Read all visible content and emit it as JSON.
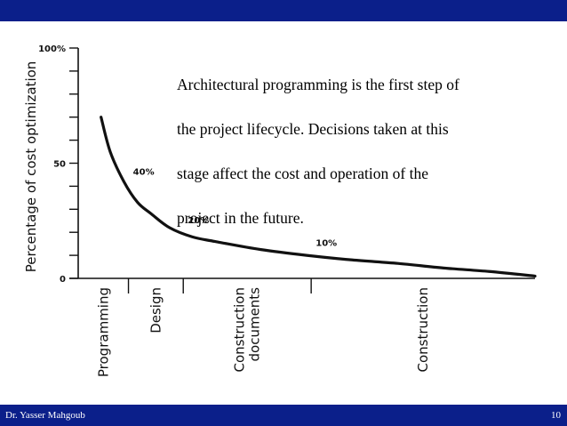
{
  "caption": {
    "lines": [
      "Architectural programming is the first step of",
      "the project lifecycle. Decisions taken at this",
      "stage affect the cost and operation of the",
      "project in the future."
    ]
  },
  "footer": {
    "author": "Dr. Yasser Mahgoub",
    "page": "10"
  },
  "colors": {
    "bar": "#0b1f8a",
    "curve": "#111111"
  },
  "chart_data": {
    "type": "line",
    "title": "",
    "ylabel": "Percentage of cost optimization",
    "xlabel": "",
    "ylim": [
      0,
      100
    ],
    "xlim": [
      0,
      100
    ],
    "y_ticks": [
      {
        "value": 100,
        "label": "100%"
      },
      {
        "value": 50,
        "label": "50"
      },
      {
        "value": 0,
        "label": "0"
      }
    ],
    "y_minor_tick_step": 10,
    "phases": [
      {
        "label": "Programming",
        "start": 0,
        "end": 11
      },
      {
        "label": "Design",
        "start": 11,
        "end": 23
      },
      {
        "label": "Construction\ndocuments",
        "start": 23,
        "end": 51
      },
      {
        "label": "Construction",
        "start": 51,
        "end": 100
      }
    ],
    "series": [
      {
        "x": [
          5,
          7,
          10,
          13,
          16,
          20,
          25,
          30,
          40,
          50,
          60,
          70,
          80,
          90,
          100
        ],
        "y": [
          70,
          55,
          42,
          33,
          28,
          22,
          18,
          16,
          12.5,
          10,
          8,
          6.5,
          4.5,
          3,
          1
        ]
      }
    ],
    "annotations": [
      {
        "text": "40%",
        "x": 12,
        "y": 45
      },
      {
        "text": "20%",
        "x": 24,
        "y": 24
      },
      {
        "text": "10%",
        "x": 52,
        "y": 14
      }
    ],
    "grid": false
  }
}
